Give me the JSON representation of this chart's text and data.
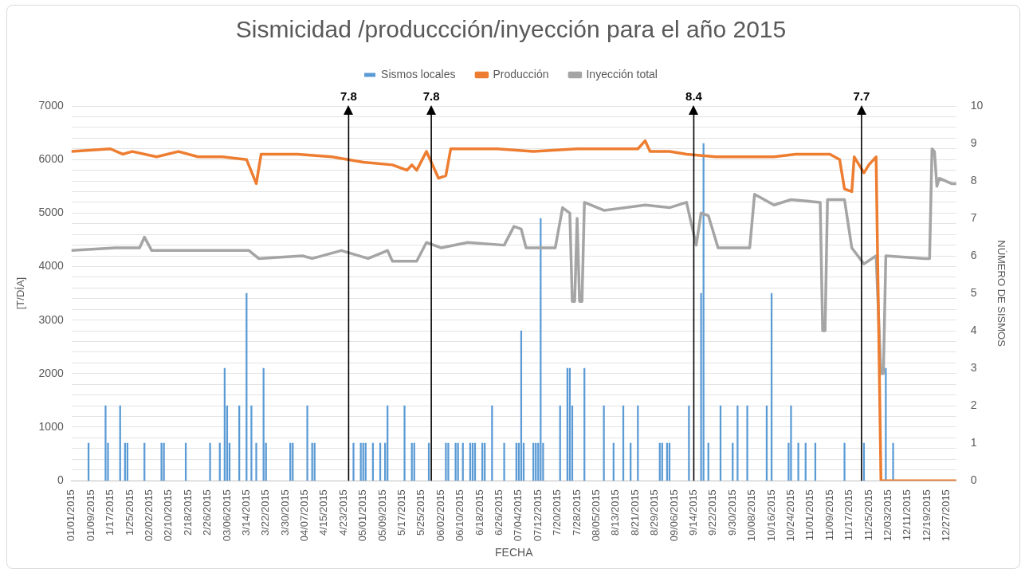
{
  "chart_data": {
    "type": "bar",
    "title": "Sismicidad /produccción/inyección para el año 2015",
    "xlabel": "FECHA",
    "ylabel": "[T/DÍA]",
    "y2label": "NÚMERO DE SISMOS",
    "legend": "top",
    "grid": "y",
    "marker": "none",
    "line_style": "solid",
    "xlim": [
      "2015-01-01",
      "2015-12-31"
    ],
    "xticks": [
      {
        "value": "2015-01-01",
        "label": "01/01/2015"
      },
      {
        "value": "2015-01-09",
        "label": "01/09/2015"
      },
      {
        "value": "2015-01-17",
        "label": "1/17/2015"
      },
      {
        "value": "2015-01-25",
        "label": "1/25/2015"
      },
      {
        "value": "2015-02-02",
        "label": "02/02/2015"
      },
      {
        "value": "2015-02-10",
        "label": "02/10/2015"
      },
      {
        "value": "2015-02-18",
        "label": "2/18/2015"
      },
      {
        "value": "2015-02-26",
        "label": "2/26/2015"
      },
      {
        "value": "2015-03-06",
        "label": "03/06/2015"
      },
      {
        "value": "2015-03-14",
        "label": "3/14/2015"
      },
      {
        "value": "2015-03-22",
        "label": "3/22/2015"
      },
      {
        "value": "2015-03-30",
        "label": "3/30/2015"
      },
      {
        "value": "2015-04-07",
        "label": "04/07/2015"
      },
      {
        "value": "2015-04-15",
        "label": "4/15/2015"
      },
      {
        "value": "2015-04-23",
        "label": "4/23/2015"
      },
      {
        "value": "2015-05-01",
        "label": "05/01/2015"
      },
      {
        "value": "2015-05-09",
        "label": "05/09/2015"
      },
      {
        "value": "2015-05-17",
        "label": "5/17/2015"
      },
      {
        "value": "2015-05-25",
        "label": "5/25/2015"
      },
      {
        "value": "2015-06-02",
        "label": "06/02/2015"
      },
      {
        "value": "2015-06-10",
        "label": "06/10/2015"
      },
      {
        "value": "2015-06-18",
        "label": "6/18/2015"
      },
      {
        "value": "2015-06-26",
        "label": "6/26/2015"
      },
      {
        "value": "2015-07-04",
        "label": "07/04/2015"
      },
      {
        "value": "2015-07-12",
        "label": "07/12/2015"
      },
      {
        "value": "2015-07-20",
        "label": "7/20/2015"
      },
      {
        "value": "2015-07-28",
        "label": "7/28/2015"
      },
      {
        "value": "2015-08-05",
        "label": "08/05/2015"
      },
      {
        "value": "2015-08-13",
        "label": "8/13/2015"
      },
      {
        "value": "2015-08-21",
        "label": "8/21/2015"
      },
      {
        "value": "2015-08-29",
        "label": "8/29/2015"
      },
      {
        "value": "2015-09-06",
        "label": "09/06/2015"
      },
      {
        "value": "2015-09-14",
        "label": "9/14/2015"
      },
      {
        "value": "2015-09-22",
        "label": "9/22/2015"
      },
      {
        "value": "2015-09-30",
        "label": "9/30/2015"
      },
      {
        "value": "2015-10-08",
        "label": "10/08/2015"
      },
      {
        "value": "2015-10-16",
        "label": "10/16/2015"
      },
      {
        "value": "2015-10-24",
        "label": "10/24/2015"
      },
      {
        "value": "2015-11-01",
        "label": "11/01/2015"
      },
      {
        "value": "2015-11-09",
        "label": "11/09/2015"
      },
      {
        "value": "2015-11-17",
        "label": "11/17/2015"
      },
      {
        "value": "2015-11-25",
        "label": "11/25/2015"
      },
      {
        "value": "2015-12-03",
        "label": "12/03/2015"
      },
      {
        "value": "2015-12-11",
        "label": "12/11/2015"
      },
      {
        "value": "2015-12-19",
        "label": "12/19/2015"
      },
      {
        "value": "2015-12-27",
        "label": "12/27/2015"
      }
    ],
    "ylim": [
      0,
      7000
    ],
    "yticks": [
      0,
      {
        "value": 200,
        "label": null
      },
      {
        "value": 400,
        "label": null
      },
      {
        "value": 600,
        "label": null
      },
      {
        "value": 800,
        "label": null
      },
      1000,
      {
        "value": 1200,
        "label": null
      },
      {
        "value": 1400,
        "label": null
      },
      {
        "value": 1600,
        "label": null
      },
      {
        "value": 1800,
        "label": null
      },
      2000,
      {
        "value": 2200,
        "label": null
      },
      {
        "value": 2400,
        "label": null
      },
      {
        "value": 2600,
        "label": null
      },
      {
        "value": 2800,
        "label": null
      },
      3000,
      {
        "value": 3200,
        "label": null
      },
      {
        "value": 3400,
        "label": null
      },
      {
        "value": 3600,
        "label": null
      },
      {
        "value": 3800,
        "label": null
      },
      4000,
      {
        "value": 4200,
        "label": null
      },
      {
        "value": 4400,
        "label": null
      },
      {
        "value": 4600,
        "label": null
      },
      {
        "value": 4800,
        "label": null
      },
      5000,
      {
        "value": 5200,
        "label": null
      },
      {
        "value": 5400,
        "label": null
      },
      {
        "value": 5600,
        "label": null
      },
      {
        "value": 5800,
        "label": null
      },
      6000,
      {
        "value": 6200,
        "label": null
      },
      {
        "value": 6400,
        "label": null
      },
      {
        "value": 6600,
        "label": null
      },
      {
        "value": 6800,
        "label": null
      },
      7000
    ],
    "y2lim": [
      0,
      10
    ],
    "y2ticks": [
      0,
      1,
      2,
      3,
      4,
      5,
      6,
      7,
      8,
      9,
      10
    ],
    "series": [
      {
        "name": "Sismos locales",
        "axis": "y2",
        "color": "#5b9bd5",
        "x": [
          "2015-01-08",
          "2015-01-15",
          "2015-01-16",
          "2015-01-21",
          "2015-01-23",
          "2015-01-24",
          "2015-01-31",
          "2015-02-07",
          "2015-02-08",
          "2015-02-17",
          "2015-02-27",
          "2015-03-03",
          "2015-03-05",
          "2015-03-06",
          "2015-03-07",
          "2015-03-11",
          "2015-03-14",
          "2015-03-16",
          "2015-03-18",
          "2015-03-21",
          "2015-03-22",
          "2015-04-01",
          "2015-04-02",
          "2015-04-08",
          "2015-04-10",
          "2015-04-11",
          "2015-04-27",
          "2015-04-30",
          "2015-05-01",
          "2015-05-02",
          "2015-05-05",
          "2015-05-08",
          "2015-05-10",
          "2015-05-11",
          "2015-05-18",
          "2015-05-21",
          "2015-05-22",
          "2015-05-28",
          "2015-06-04",
          "2015-06-05",
          "2015-06-08",
          "2015-06-09",
          "2015-06-11",
          "2015-06-14",
          "2015-06-15",
          "2015-06-16",
          "2015-06-19",
          "2015-06-20",
          "2015-06-23",
          "2015-06-28",
          "2015-07-03",
          "2015-07-04",
          "2015-07-05",
          "2015-07-06",
          "2015-07-10",
          "2015-07-11",
          "2015-07-12",
          "2015-07-13",
          "2015-07-14",
          "2015-07-21",
          "2015-07-24",
          "2015-07-25",
          "2015-07-26",
          "2015-07-31",
          "2015-08-08",
          "2015-08-12",
          "2015-08-16",
          "2015-08-19",
          "2015-08-22",
          "2015-08-31",
          "2015-09-01",
          "2015-09-03",
          "2015-09-04",
          "2015-09-12",
          "2015-09-17",
          "2015-09-18",
          "2015-09-20",
          "2015-09-25",
          "2015-09-30",
          "2015-10-02",
          "2015-10-06",
          "2015-10-14",
          "2015-10-16",
          "2015-10-23",
          "2015-10-24",
          "2015-10-27",
          "2015-10-30",
          "2015-11-03",
          "2015-11-15",
          "2015-11-23",
          "2015-12-02",
          "2015-12-05"
        ],
        "values": [
          1,
          2,
          1,
          2,
          1,
          1,
          1,
          1,
          1,
          1,
          1,
          1,
          3,
          2,
          1,
          2,
          5,
          2,
          1,
          3,
          1,
          1,
          1,
          2,
          1,
          1,
          1,
          1,
          1,
          1,
          1,
          1,
          1,
          2,
          2,
          1,
          1,
          1,
          1,
          1,
          1,
          1,
          1,
          1,
          1,
          1,
          1,
          1,
          2,
          1,
          1,
          1,
          4,
          1,
          1,
          1,
          1,
          7,
          1,
          2,
          3,
          3,
          2,
          3,
          2,
          1,
          2,
          1,
          2,
          1,
          1,
          1,
          1,
          2,
          5,
          9,
          1,
          2,
          1,
          2,
          2,
          2,
          5,
          1,
          2,
          1,
          1,
          1,
          1,
          1,
          3,
          1
        ]
      },
      {
        "name": "Producción",
        "type": "line",
        "color": "#ed7d31",
        "x": [
          "2015-01-01",
          "2015-01-17",
          "2015-01-22",
          "2015-01-26",
          "2015-02-05",
          "2015-02-14",
          "2015-02-22",
          "2015-03-04",
          "2015-03-14",
          "2015-03-18",
          "2015-03-20",
          "2015-04-04",
          "2015-04-18",
          "2015-05-01",
          "2015-05-13",
          "2015-05-19",
          "2015-05-21",
          "2015-05-23",
          "2015-05-27",
          "2015-06-01",
          "2015-06-04",
          "2015-06-06",
          "2015-06-25",
          "2015-07-10",
          "2015-07-28",
          "2015-08-22",
          "2015-08-25",
          "2015-08-27",
          "2015-09-04",
          "2015-09-11",
          "2015-09-23",
          "2015-10-17",
          "2015-10-26",
          "2015-11-09",
          "2015-11-13",
          "2015-11-15",
          "2015-11-18",
          "2015-11-19",
          "2015-11-23",
          "2015-11-25",
          "2015-11-28",
          "2015-11-30",
          "2015-12-31"
        ],
        "values": [
          6150,
          6200,
          6100,
          6150,
          6050,
          6150,
          6050,
          6050,
          6000,
          5550,
          6100,
          6100,
          6050,
          5950,
          5900,
          5800,
          5900,
          5800,
          6150,
          5650,
          5700,
          6200,
          6200,
          6150,
          6200,
          6200,
          6350,
          6150,
          6150,
          6100,
          6050,
          6050,
          6100,
          6100,
          6000,
          5450,
          5400,
          6050,
          5750,
          5900,
          6050,
          0,
          0
        ]
      },
      {
        "name": "Inyección total",
        "type": "line",
        "color": "#a5a5a5",
        "x": [
          "2015-01-01",
          "2015-01-19",
          "2015-01-29",
          "2015-01-31",
          "2015-02-03",
          "2015-02-16",
          "2015-03-04",
          "2015-03-15",
          "2015-03-19",
          "2015-04-06",
          "2015-04-10",
          "2015-04-22",
          "2015-05-03",
          "2015-05-11",
          "2015-05-13",
          "2015-05-23",
          "2015-05-27",
          "2015-06-02",
          "2015-06-13",
          "2015-06-28",
          "2015-07-02",
          "2015-07-05",
          "2015-07-07",
          "2015-07-19",
          "2015-07-22",
          "2015-07-25",
          "2015-07-26",
          "2015-07-27",
          "2015-07-28",
          "2015-07-29",
          "2015-07-30",
          "2015-07-31",
          "2015-08-08",
          "2015-08-25",
          "2015-09-04",
          "2015-09-11",
          "2015-09-15",
          "2015-09-17",
          "2015-09-20",
          "2015-09-24",
          "2015-10-07",
          "2015-10-09",
          "2015-10-17",
          "2015-10-24",
          "2015-11-05",
          "2015-11-06",
          "2015-11-07",
          "2015-11-08",
          "2015-11-15",
          "2015-11-18",
          "2015-11-23",
          "2015-11-28",
          "2015-11-30",
          "2015-12-01",
          "2015-12-02",
          "2015-12-18",
          "2015-12-20",
          "2015-12-21",
          "2015-12-22",
          "2015-12-23",
          "2015-12-24",
          "2015-12-29",
          "2015-12-31"
        ],
        "values": [
          4300,
          4350,
          4350,
          4550,
          4300,
          4300,
          4300,
          4300,
          4150,
          4200,
          4150,
          4300,
          4150,
          4300,
          4100,
          4100,
          4450,
          4350,
          4450,
          4400,
          4750,
          4700,
          4350,
          4350,
          5100,
          5000,
          3350,
          3350,
          4900,
          3350,
          3350,
          5200,
          5050,
          5150,
          5100,
          5200,
          4400,
          5000,
          4950,
          4350,
          4350,
          5350,
          5150,
          5250,
          5200,
          2800,
          2800,
          5250,
          5250,
          4350,
          4050,
          4200,
          2000,
          2000,
          4200,
          4150,
          4150,
          6200,
          6150,
          5500,
          5650,
          5550,
          5550
        ]
      }
    ],
    "ref_lines": [
      {
        "axis": "x",
        "value": "2015-04-25",
        "label": "7.8",
        "color": "#000000"
      },
      {
        "axis": "x",
        "value": "2015-05-29",
        "label": "7.8",
        "color": "#000000"
      },
      {
        "axis": "x",
        "value": "2015-09-14",
        "label": "8.4",
        "color": "#000000"
      },
      {
        "axis": "x",
        "value": "2015-11-22",
        "label": "7.7",
        "color": "#000000"
      }
    ]
  }
}
